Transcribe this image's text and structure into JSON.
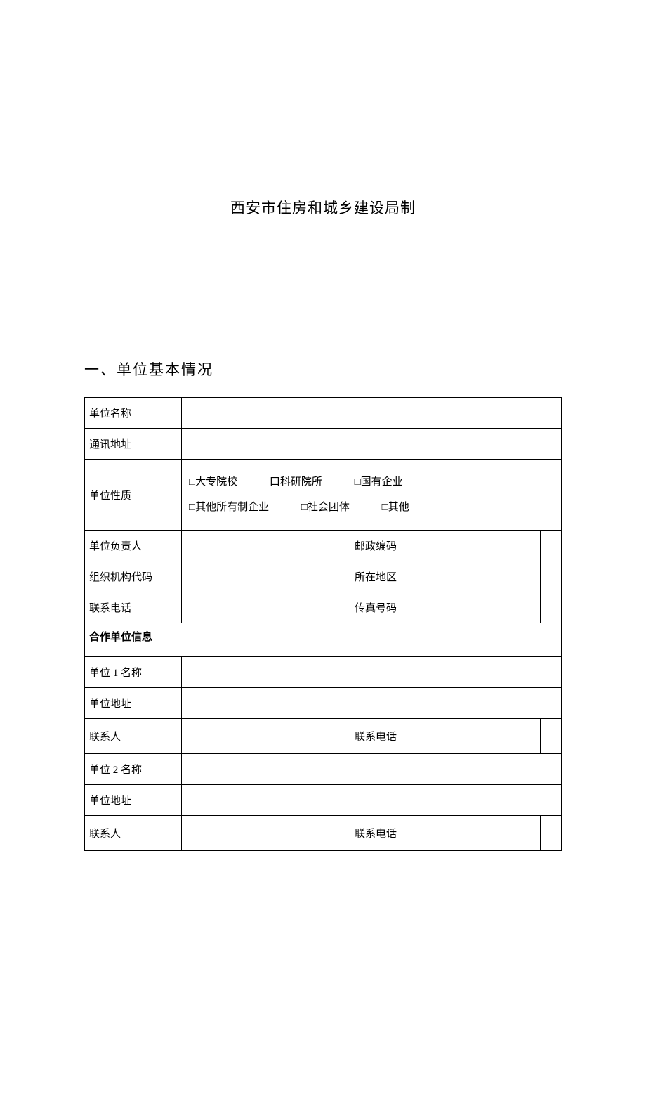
{
  "document": {
    "issuer": "西安市住房和城乡建设局制",
    "section_title": "一、单位基本情况"
  },
  "checkbox_glyph": "□",
  "checkbox_glyph_alt": "口",
  "form": {
    "labels": {
      "unit_name": "单位名称",
      "address": "通讯地址",
      "unit_type": "单位性质",
      "unit_head": "单位负责人",
      "postal_code": "邮政编码",
      "org_code": "组织机构代码",
      "region": "所在地区",
      "phone": "联系电话",
      "fax": "传真号码",
      "partner_info": "合作单位信息",
      "unit1_name": "单位 1 名称",
      "unit_addr": "单位地址",
      "contact_person": "联系人",
      "contact_phone": "联系电话",
      "unit2_name": "单位 2 名称"
    },
    "unit_types": {
      "opt1": "大专院校",
      "opt2": "科研院所",
      "opt3": "国有企业",
      "opt4": "其他所有制企业",
      "opt5": "社会团体",
      "opt6": "其他"
    }
  },
  "style": {
    "text_color": "#000000",
    "background_color": "#ffffff",
    "border_color": "#000000",
    "header_fontsize": 21,
    "body_fontsize": 15
  }
}
